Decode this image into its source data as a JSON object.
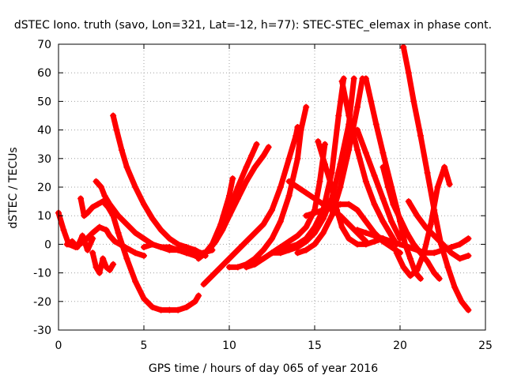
{
  "chart_data": {
    "type": "scatter",
    "title": "dSTEC Iono. truth (savo, Lon=321, Lat=-12, h=77): STEC-STEC_elemax in phase cont.",
    "xlabel": "GPS time / hours of day 065 of year 2016",
    "ylabel": "dSTEC  / TECUs",
    "xlim": [
      0,
      25
    ],
    "ylim": [
      -30,
      70
    ],
    "xticks": [
      0,
      5,
      10,
      15,
      20,
      25
    ],
    "yticks": [
      -30,
      -20,
      -10,
      0,
      10,
      20,
      30,
      40,
      50,
      60,
      70
    ],
    "grid": true,
    "marker": "plus",
    "color": "#ff0000",
    "series": [
      {
        "x": [
          0.0,
          0.3,
          0.6,
          1.0,
          1.5,
          2.0,
          2.4,
          2.8,
          3.0,
          3.3,
          3.6,
          3.9,
          4.2,
          4.5,
          5.0
        ],
        "y": [
          11,
          5,
          0,
          -1,
          1,
          4,
          6,
          5,
          3,
          1,
          0,
          -1,
          -2,
          -3,
          -4
        ]
      },
      {
        "x": [
          2.2,
          2.5,
          2.7,
          3.0,
          3.5,
          4.0,
          4.5,
          5.0,
          5.5,
          6.0,
          6.5,
          7.0,
          7.5,
          8.0,
          8.5,
          9.0
        ],
        "y": [
          22,
          20,
          17,
          14,
          10,
          7,
          4,
          2,
          0,
          -1,
          -2,
          -2,
          -3,
          -3,
          -3,
          -2
        ]
      },
      {
        "x": [
          3.2,
          3.4,
          3.7,
          4.0,
          4.5,
          5.0,
          5.5,
          6.0,
          6.5,
          7.0,
          7.5,
          8.0,
          8.3,
          8.6
        ],
        "y": [
          45,
          40,
          33,
          27,
          20,
          14,
          9,
          5,
          2,
          0,
          -1,
          -2,
          -3,
          -4
        ]
      },
      {
        "x": [
          1.3,
          1.5,
          1.7,
          2.0,
          2.3,
          2.6,
          2.9,
          3.2,
          3.5,
          4.0,
          4.5,
          5.0,
          5.5,
          6.0,
          6.5,
          7.0,
          7.5,
          8.0,
          8.2
        ],
        "y": [
          16,
          10,
          11,
          13,
          14,
          15,
          13,
          10,
          4,
          -5,
          -13,
          -19,
          -22,
          -23,
          -23,
          -23,
          -22,
          -20,
          -18
        ]
      },
      {
        "x": [
          2.0,
          2.2,
          2.4,
          2.6,
          2.8,
          3.0,
          3.2
        ],
        "y": [
          -3,
          -8,
          -10,
          -5,
          -8,
          -9,
          -7
        ]
      },
      {
        "x": [
          0.5,
          0.8,
          1.1,
          1.4,
          1.7,
          2.0
        ],
        "y": [
          0,
          1,
          -1,
          3,
          -2,
          2
        ]
      },
      {
        "x": [
          5.0,
          5.5,
          6.0,
          6.5,
          7.0,
          7.5,
          8.0,
          8.3,
          8.6,
          9.0,
          9.5,
          10.0,
          10.2
        ],
        "y": [
          -1,
          0,
          -1,
          -1,
          -2,
          -3,
          -4,
          -4,
          -3,
          0,
          7,
          17,
          23
        ]
      },
      {
        "x": [
          8.2,
          8.6,
          9.0,
          9.5,
          10.0,
          10.5,
          11.0,
          11.3,
          11.6
        ],
        "y": [
          -5,
          -3,
          0,
          5,
          12,
          20,
          27,
          31,
          35
        ]
      },
      {
        "x": [
          8.4,
          8.8,
          9.2,
          9.6,
          10.0,
          10.5,
          11.0,
          11.5,
          12.0,
          12.3
        ],
        "y": [
          -4,
          -2,
          1,
          5,
          10,
          16,
          22,
          27,
          31,
          34
        ]
      },
      {
        "x": [
          8.5,
          9.0,
          9.5,
          10.0,
          10.5,
          11.0,
          11.5,
          12.0,
          12.5,
          13.0,
          13.5,
          13.9,
          14.0
        ],
        "y": [
          -14,
          -11,
          -8,
          -5,
          -2,
          1,
          4,
          7,
          12,
          20,
          30,
          38,
          41
        ]
      },
      {
        "x": [
          10.0,
          10.5,
          11.0,
          11.5,
          12.0,
          12.5,
          13.0,
          13.5,
          14.0,
          14.2,
          14.5
        ],
        "y": [
          -8,
          -8,
          -7,
          -5,
          -2,
          2,
          8,
          17,
          30,
          40,
          48
        ]
      },
      {
        "x": [
          11.0,
          11.5,
          12.0,
          12.5,
          13.0,
          13.5,
          14.0,
          14.5,
          15.0,
          15.3,
          15.6
        ],
        "y": [
          -8,
          -7,
          -5,
          -3,
          -1,
          1,
          3,
          6,
          12,
          22,
          35
        ]
      },
      {
        "x": [
          11.5,
          12.0,
          12.5,
          13.0,
          13.5,
          14.0,
          14.5,
          15.0,
          15.5,
          16.0,
          16.4,
          16.7
        ],
        "y": [
          -6,
          -5,
          -3,
          -1,
          -1,
          0,
          2,
          6,
          12,
          25,
          45,
          58
        ]
      },
      {
        "x": [
          12.5,
          13.0,
          13.5,
          14.0,
          14.5,
          15.0,
          15.5,
          16.0,
          16.5,
          17.0,
          17.3
        ],
        "y": [
          -3,
          -3,
          -2,
          -1,
          1,
          4,
          9,
          16,
          28,
          42,
          58
        ]
      },
      {
        "x": [
          14.0,
          14.5,
          15.0,
          15.5,
          16.0,
          16.5,
          17.0,
          17.5,
          17.8
        ],
        "y": [
          -3,
          -2,
          0,
          4,
          10,
          20,
          33,
          48,
          58
        ]
      },
      {
        "x": [
          13.5,
          14.0,
          14.5,
          15.0,
          15.5,
          16.0,
          16.5,
          17.0,
          17.5,
          18.0
        ],
        "y": [
          22,
          20,
          18,
          16,
          14,
          12,
          10,
          7,
          4,
          1
        ]
      },
      {
        "x": [
          14.5,
          15.0,
          15.5,
          16.0,
          16.5,
          17.0,
          17.5,
          18.0,
          18.5,
          19.0,
          19.5,
          20.0
        ],
        "y": [
          10,
          11,
          12,
          13,
          14,
          14,
          12,
          8,
          4,
          1,
          -1,
          -3
        ]
      },
      {
        "x": [
          15.2,
          15.6,
          16.0,
          16.3,
          16.6,
          17.0,
          17.5,
          18.0,
          18.5,
          19.0,
          19.5
        ],
        "y": [
          36,
          28,
          20,
          12,
          6,
          2,
          0,
          0,
          1,
          2,
          0
        ]
      },
      {
        "x": [
          16.6,
          17.0,
          17.5,
          18.0,
          18.5,
          19.0,
          19.5,
          19.8
        ],
        "y": [
          57,
          45,
          33,
          22,
          14,
          8,
          3,
          0
        ]
      },
      {
        "x": [
          17.5,
          18.0,
          18.5,
          19.0,
          19.5,
          20.0
        ],
        "y": [
          40,
          32,
          24,
          16,
          8,
          2
        ]
      },
      {
        "x": [
          18.0,
          18.3,
          18.6,
          19.0,
          19.5,
          20.0,
          20.3,
          20.6,
          20.9,
          21.2
        ],
        "y": [
          58,
          50,
          42,
          32,
          20,
          8,
          0,
          -5,
          -10,
          -12
        ]
      },
      {
        "x": [
          19.0,
          19.3,
          19.6,
          20.0,
          20.4,
          20.8,
          21.2,
          21.6,
          22.0,
          22.3
        ],
        "y": [
          27,
          20,
          14,
          9,
          4,
          0,
          -3,
          -6,
          -10,
          -12
        ]
      },
      {
        "x": [
          20.2,
          20.5,
          20.8,
          21.2,
          21.6,
          22.0,
          22.4,
          22.8,
          23.2,
          23.6,
          24.0
        ],
        "y": [
          69,
          60,
          50,
          38,
          25,
          12,
          0,
          -8,
          -15,
          -20,
          -23
        ]
      },
      {
        "x": [
          19.8,
          20.2,
          20.6,
          21.0,
          21.4,
          21.8,
          22.2,
          22.6,
          22.9
        ],
        "y": [
          -3,
          -8,
          -11,
          -9,
          -3,
          7,
          20,
          27,
          21
        ]
      },
      {
        "x": [
          17.5,
          18.0,
          18.5,
          19.0,
          19.5,
          20.0,
          20.5,
          21.0,
          21.5,
          22.0,
          22.5,
          23.0,
          23.5,
          24.0
        ],
        "y": [
          5,
          4,
          3,
          2,
          1,
          0,
          -1,
          -2,
          -3,
          -3,
          -2,
          -1,
          0,
          2
        ]
      },
      {
        "x": [
          20.5,
          21.0,
          21.5,
          22.0,
          22.5,
          23.0,
          23.5,
          24.0
        ],
        "y": [
          15,
          10,
          6,
          3,
          0,
          -3,
          -5,
          -4
        ]
      }
    ]
  }
}
